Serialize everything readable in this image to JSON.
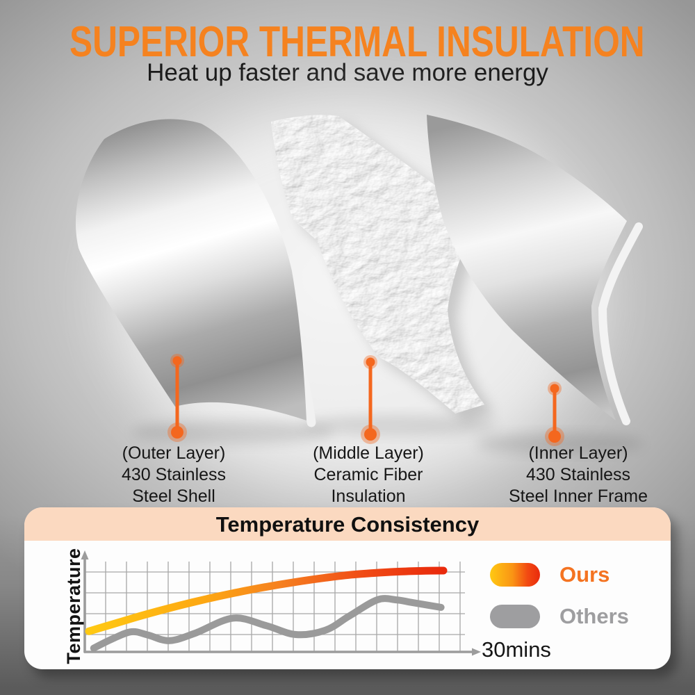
{
  "header": {
    "title": "SUPERIOR THERMAL INSULATION",
    "subtitle": "Heat up faster and save more energy"
  },
  "layers": [
    {
      "id": "outer",
      "lines": [
        "(Outer Layer)",
        "430 Stainless",
        "Steel Shell"
      ]
    },
    {
      "id": "middle",
      "lines": [
        "(Middle Layer)",
        "Ceramic Fiber",
        "Insulation"
      ]
    },
    {
      "id": "inner",
      "lines": [
        "(Inner Layer)",
        "430 Stainless",
        "Steel Inner Frame"
      ]
    }
  ],
  "chart_card": {
    "title": "Temperature Consistency",
    "y_axis_label": "Temperature",
    "x_axis_label": "30mins",
    "legend": [
      {
        "label": "Ours",
        "swatch": "yellow-to-red gradient pill"
      },
      {
        "label": "Others",
        "swatch": "gray pill"
      }
    ]
  },
  "colors": {
    "accent_orange": "#F5821F",
    "pointer_orange": "#F4671E",
    "ours_text_orange": "#F47321",
    "header_peach": "#FBD9C0",
    "card_white": "#FDFDFD",
    "chart_gray": "#9A9A9A",
    "others_gray": "#9E9EA0",
    "text_dark": "#1B1B1B",
    "ours_gradient_start": "#FFC913",
    "ours_gradient_mid": "#F7941D",
    "ours_gradient_end": "#E92A0C"
  },
  "chart_data": {
    "type": "line",
    "title": "Temperature Consistency",
    "xlabel": "30mins",
    "ylabel": "Temperature",
    "x_range_minutes": [
      0,
      30
    ],
    "y_axis_note": "no numeric ticks shown; values are estimated relative temperature 0-100",
    "grid": true,
    "legend_position": "right",
    "series": [
      {
        "name": "Ours",
        "style": "thick yellow-to-red gradient, rises fast then plateaus",
        "x": [
          0,
          2,
          4,
          6,
          8,
          10,
          12,
          14,
          16,
          18,
          20,
          22,
          24,
          26,
          28,
          30
        ],
        "values": [
          22,
          29.5,
          37,
          44,
          50.5,
          56.5,
          62,
          67,
          71.5,
          75.5,
          79,
          82,
          84,
          85.5,
          86.3,
          86.7
        ]
      },
      {
        "name": "Others",
        "style": "thick gray, low and wavy with slow rise",
        "x": [
          0.4,
          2,
          3.6,
          5,
          6.8,
          9,
          12.2,
          15,
          17.5,
          20,
          22,
          24.4,
          26,
          27.4,
          29.8
        ],
        "values": [
          4,
          14,
          21.5,
          18,
          12,
          20,
          36,
          28,
          18.5,
          23,
          38,
          55.5,
          55.5,
          52.5,
          47.5
        ]
      }
    ]
  }
}
